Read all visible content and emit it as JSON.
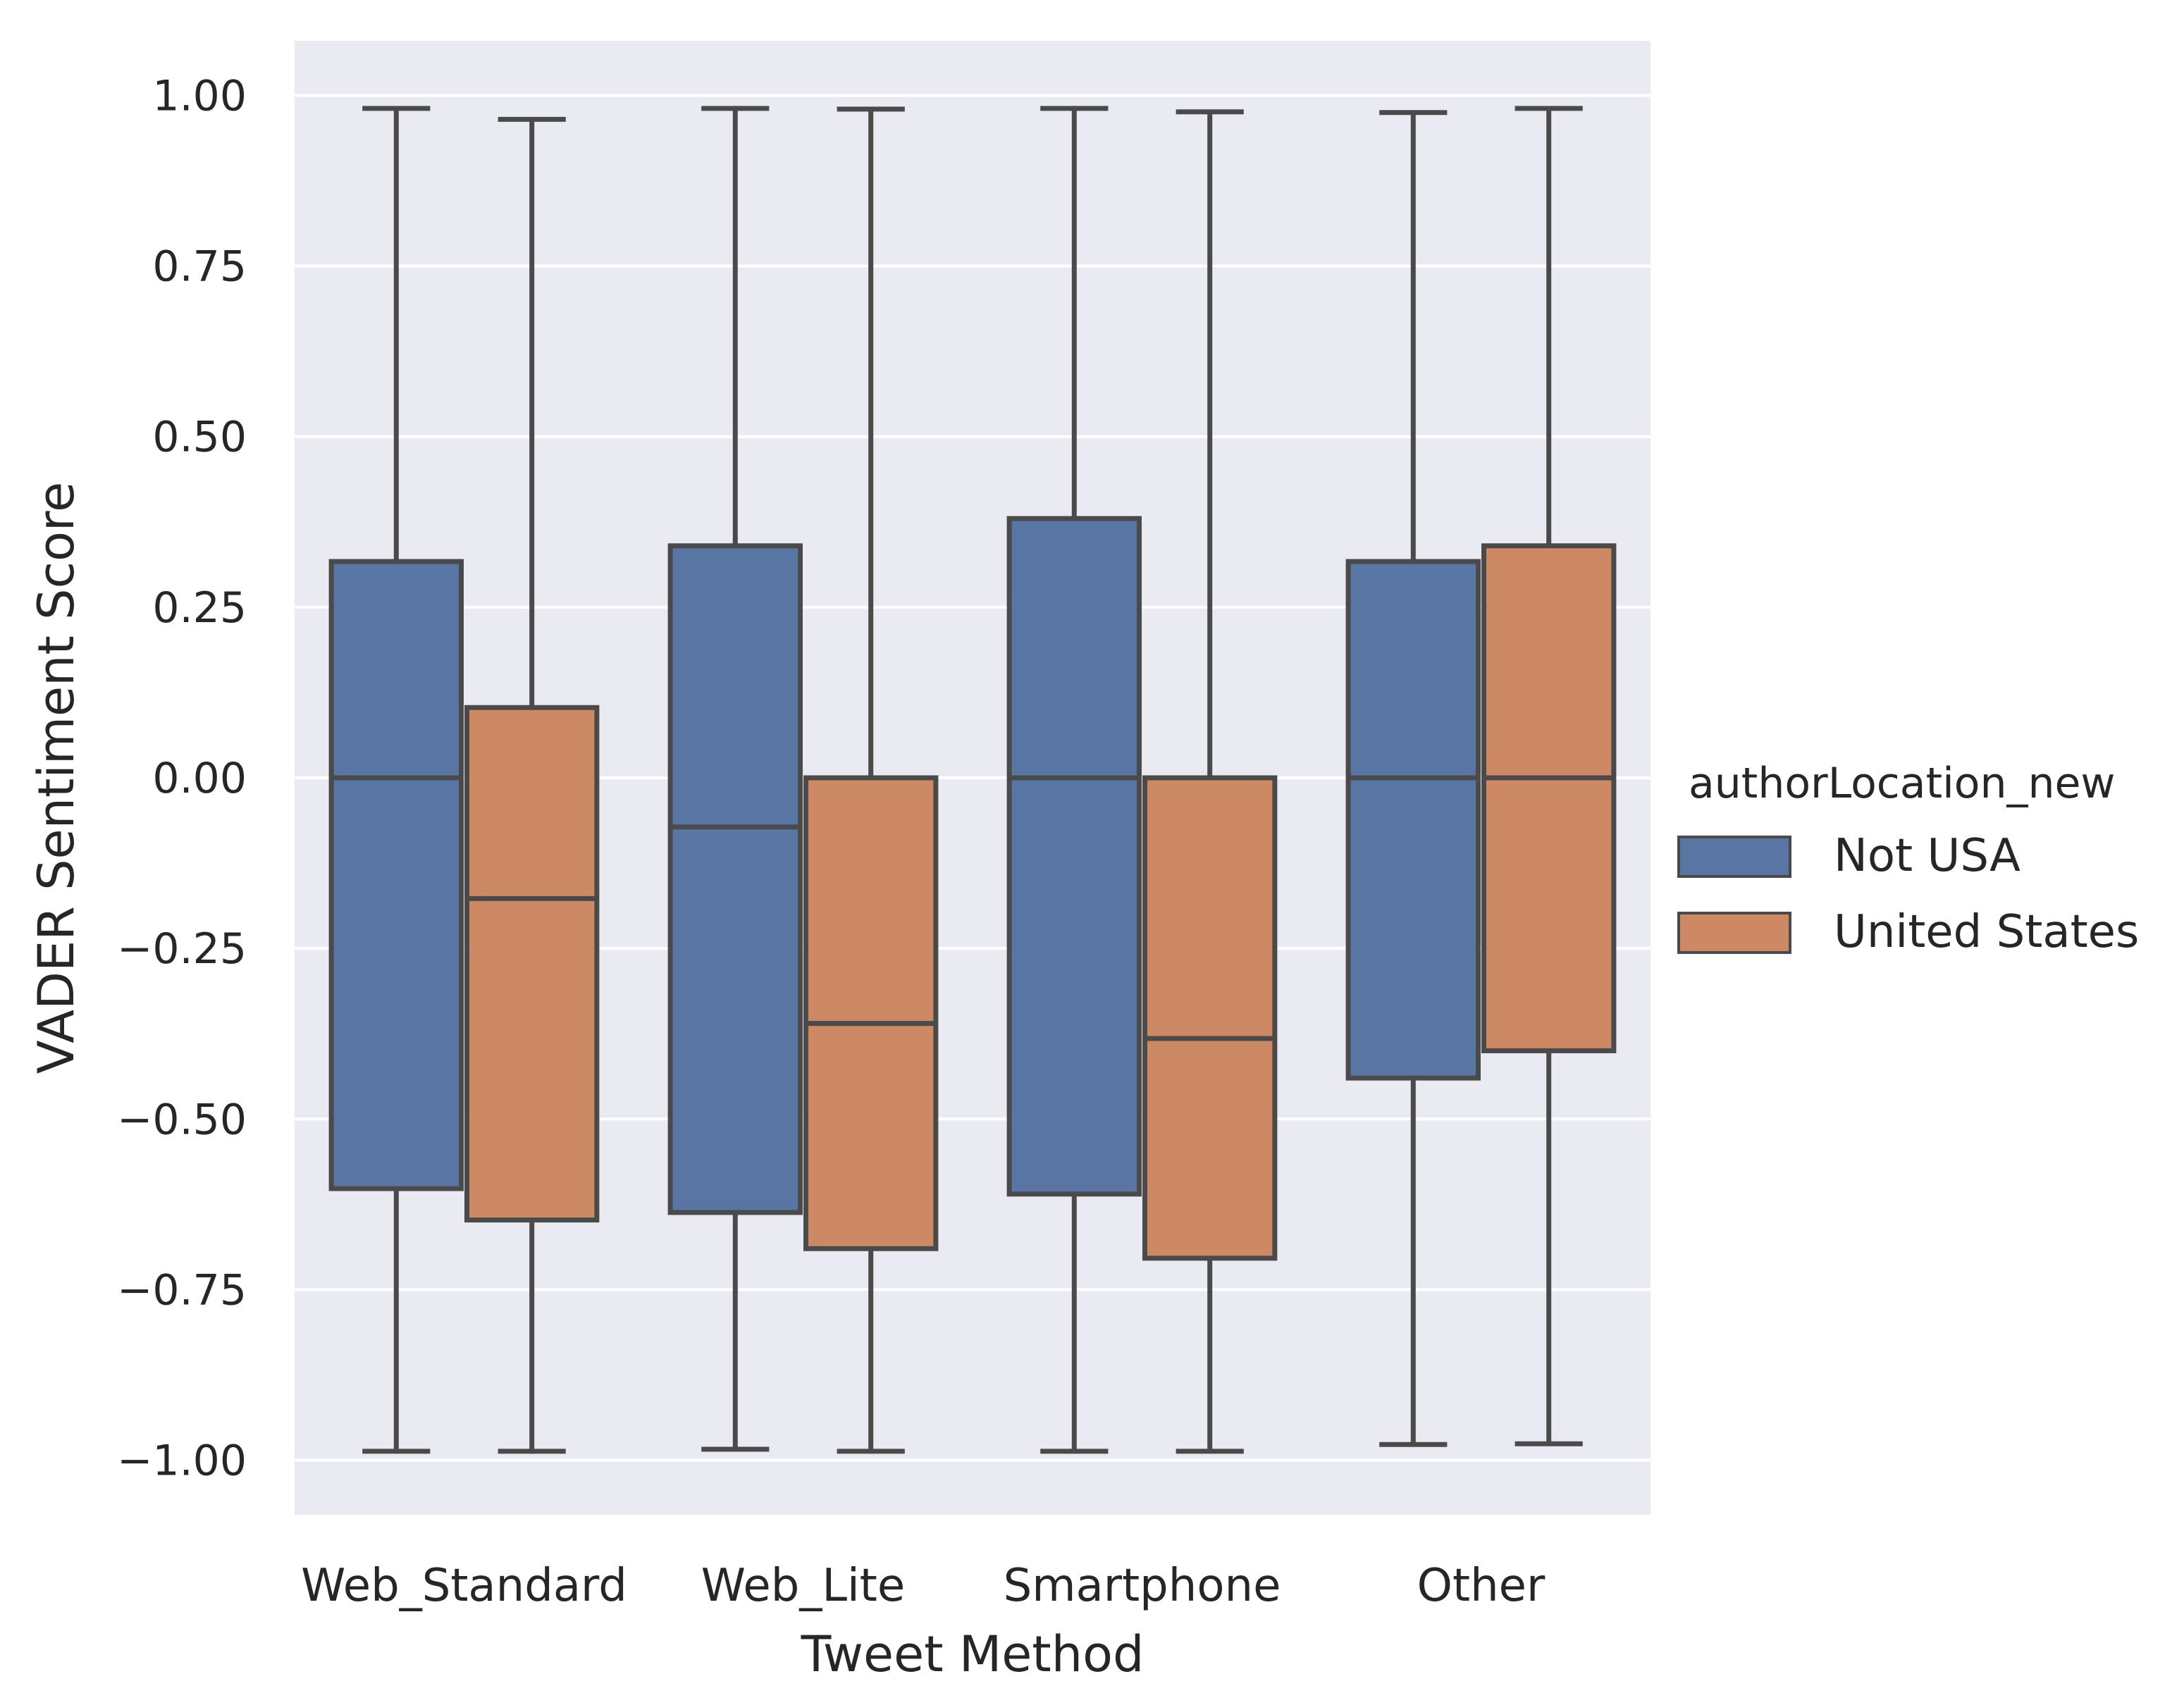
{
  "chart_data": {
    "type": "box",
    "xlabel": "Tweet Method",
    "ylabel": "VADER Sentiment Score",
    "ylim": [
      -1.08,
      1.08
    ],
    "yticks": [
      1.0,
      0.75,
      0.5,
      0.25,
      0.0,
      -0.25,
      -0.5,
      -0.75,
      -1.0
    ],
    "ytick_labels": [
      "1.00",
      "0.75",
      "0.50",
      "0.25",
      "0.00",
      "−0.25",
      "−0.50",
      "−0.75",
      "−1.00"
    ],
    "grid": true,
    "categories": [
      "Web_Standard",
      "Web_Lite",
      "Smartphone",
      "Other"
    ],
    "legend": {
      "title": "authorLocation_new",
      "placement": "right"
    },
    "series": [
      {
        "name": "Not USA",
        "color": "#5875a4",
        "boxes": [
          {
            "whisker_low": -0.987,
            "q1": -0.602,
            "median": 0.0,
            "q3": 0.317,
            "whisker_high": 0.981
          },
          {
            "whisker_low": -0.984,
            "q1": -0.637,
            "median": -0.072,
            "q3": 0.34,
            "whisker_high": 0.981
          },
          {
            "whisker_low": -0.987,
            "q1": -0.61,
            "median": 0.0,
            "q3": 0.38,
            "whisker_high": 0.981
          },
          {
            "whisker_low": -0.977,
            "q1": -0.44,
            "median": 0.0,
            "q3": 0.317,
            "whisker_high": 0.975
          }
        ]
      },
      {
        "name": "United States",
        "color": "#cc8963",
        "boxes": [
          {
            "whisker_low": -0.987,
            "q1": -0.648,
            "median": -0.177,
            "q3": 0.103,
            "whisker_high": 0.965
          },
          {
            "whisker_low": -0.987,
            "q1": -0.69,
            "median": -0.36,
            "q3": 0.0,
            "whisker_high": 0.98
          },
          {
            "whisker_low": -0.987,
            "q1": -0.704,
            "median": -0.382,
            "q3": 0.0,
            "whisker_high": 0.976
          },
          {
            "whisker_low": -0.976,
            "q1": -0.4,
            "median": 0.0,
            "q3": 0.34,
            "whisker_high": 0.981
          }
        ]
      }
    ]
  }
}
